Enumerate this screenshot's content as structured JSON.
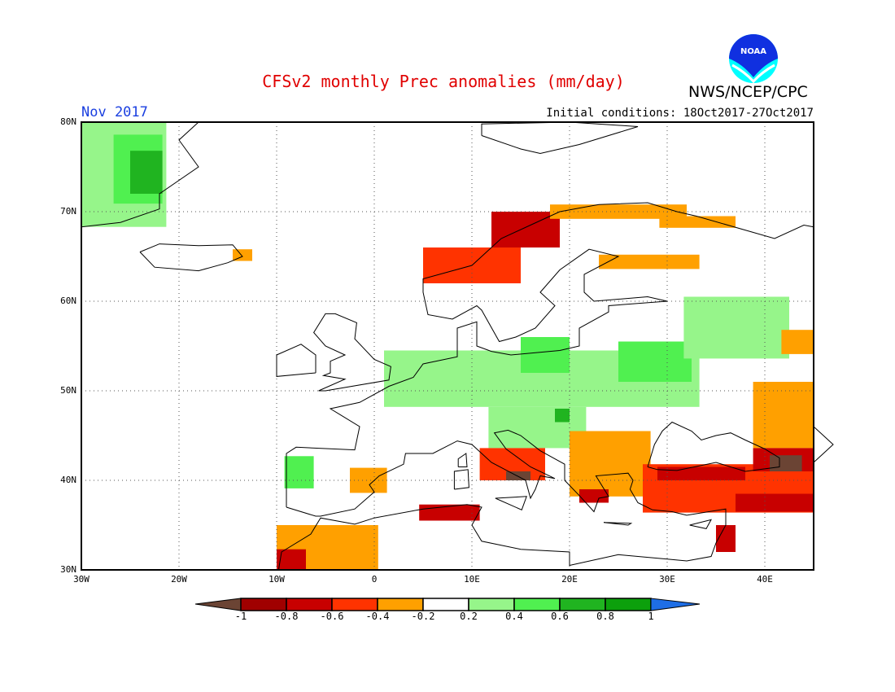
{
  "header": {
    "title": "CFSv2 monthly Prec anomalies (mm/day)",
    "organization": "NWS/NCEP/CPC",
    "logo_text": "NOAA",
    "valid_month": "Nov 2017",
    "initial_conditions": "Initial conditions: 18Oct2017-27Oct2017"
  },
  "map": {
    "projection": "lat-lon",
    "lon_range": [
      -30,
      45
    ],
    "lat_range": [
      30,
      80
    ],
    "grid": "dotted, every 10 degrees",
    "lat_ticks": [
      "30N",
      "40N",
      "50N",
      "60N",
      "70N",
      "80N"
    ],
    "lon_ticks": [
      "30W",
      "20W",
      "10W",
      "0",
      "10E",
      "20E",
      "30E",
      "40E"
    ],
    "anomaly_cells": [
      {
        "lon": [
          -30,
          -21.3
        ],
        "lat": [
          68.3,
          80
        ],
        "value": 0.3
      },
      {
        "lon": [
          -26.7,
          -21.7
        ],
        "lat": [
          70.9,
          78.6
        ],
        "value": 0.5
      },
      {
        "lon": [
          -25,
          -21.7
        ],
        "lat": [
          72,
          76.8
        ],
        "value": 0.7
      },
      {
        "lon": [
          -14.5,
          -12.5
        ],
        "lat": [
          64.5,
          65.8
        ],
        "value": -0.3
      },
      {
        "lon": [
          5,
          15
        ],
        "lat": [
          62,
          66
        ],
        "value": -0.5
      },
      {
        "lon": [
          12,
          19
        ],
        "lat": [
          66,
          70
        ],
        "value": -0.7
      },
      {
        "lon": [
          18,
          32
        ],
        "lat": [
          69.2,
          70.8
        ],
        "value": -0.4
      },
      {
        "lon": [
          29.2,
          37
        ],
        "lat": [
          68.2,
          69.5
        ],
        "value": -0.3
      },
      {
        "lon": [
          23,
          33.3
        ],
        "lat": [
          63.6,
          65.2
        ],
        "value": -0.3
      },
      {
        "lon": [
          1,
          33.3
        ],
        "lat": [
          48.2,
          54.5
        ],
        "value": 0.3
      },
      {
        "lon": [
          25,
          32.5
        ],
        "lat": [
          51,
          55.5
        ],
        "value": 0.5
      },
      {
        "lon": [
          15,
          20
        ],
        "lat": [
          52,
          56
        ],
        "value": 0.4
      },
      {
        "lon": [
          31.7,
          42.5
        ],
        "lat": [
          53.6,
          60.5
        ],
        "value": 0.3
      },
      {
        "lon": [
          11.7,
          21.7
        ],
        "lat": [
          43.6,
          48.2
        ],
        "value": 0.3
      },
      {
        "lon": [
          18.5,
          20
        ],
        "lat": [
          46.5,
          48
        ],
        "value": 0.6
      },
      {
        "lon": [
          20,
          28.3
        ],
        "lat": [
          38.2,
          45.5
        ],
        "value": -0.3
      },
      {
        "lon": [
          21,
          24
        ],
        "lat": [
          37.5,
          39
        ],
        "value": -0.8
      },
      {
        "lon": [
          27.5,
          45
        ],
        "lat": [
          36.4,
          41.8
        ],
        "value": -0.5
      },
      {
        "lon": [
          29,
          38
        ],
        "lat": [
          40,
          41.5
        ],
        "value": -0.8
      },
      {
        "lon": [
          37,
          45
        ],
        "lat": [
          36.5,
          38.5
        ],
        "value": -0.8
      },
      {
        "lon": [
          38.8,
          45
        ],
        "lat": [
          43.6,
          51
        ],
        "value": -0.3
      },
      {
        "lon": [
          38.8,
          45
        ],
        "lat": [
          41,
          43.6
        ],
        "value": -0.8
      },
      {
        "lon": [
          40.5,
          43.8
        ],
        "lat": [
          41,
          42.8
        ],
        "value": -1.1
      },
      {
        "lon": [
          41.7,
          45
        ],
        "lat": [
          54.1,
          56.8
        ],
        "value": -0.3
      },
      {
        "lon": [
          10.8,
          17.5
        ],
        "lat": [
          40,
          43.6
        ],
        "value": -0.5
      },
      {
        "lon": [
          13.5,
          16
        ],
        "lat": [
          40,
          41
        ],
        "value": -1.1
      },
      {
        "lon": [
          4.6,
          10.8
        ],
        "lat": [
          35.5,
          37.3
        ],
        "value": -0.8
      },
      {
        "lon": [
          -10,
          0.4
        ],
        "lat": [
          30,
          35
        ],
        "value": -0.3
      },
      {
        "lon": [
          -10,
          -7
        ],
        "lat": [
          30,
          32.3
        ],
        "value": -0.7
      },
      {
        "lon": [
          -9.2,
          -6.2
        ],
        "lat": [
          39.1,
          42.7
        ],
        "value": 0.4
      },
      {
        "lon": [
          -2.5,
          1.3
        ],
        "lat": [
          38.6,
          41.4
        ],
        "value": -0.3
      },
      {
        "lon": [
          35,
          37
        ],
        "lat": [
          32,
          35
        ],
        "value": -0.7
      }
    ]
  },
  "colorbar": {
    "labels": [
      "-1",
      "-0.8",
      "-0.6",
      "-0.4",
      "-0.2",
      "0.2",
      "0.4",
      "0.6",
      "0.8",
      "1"
    ],
    "bounds": [
      -1,
      -0.8,
      -0.6,
      -0.4,
      -0.2,
      0.2,
      0.4,
      0.6,
      0.8,
      1
    ],
    "colors": [
      "#6b4434",
      "#a00000",
      "#c80000",
      "#ff3300",
      "#ffa000",
      "#ffffff",
      "#96f58a",
      "#50f050",
      "#20b420",
      "#0ca00c",
      "#1e6ee6"
    ]
  }
}
